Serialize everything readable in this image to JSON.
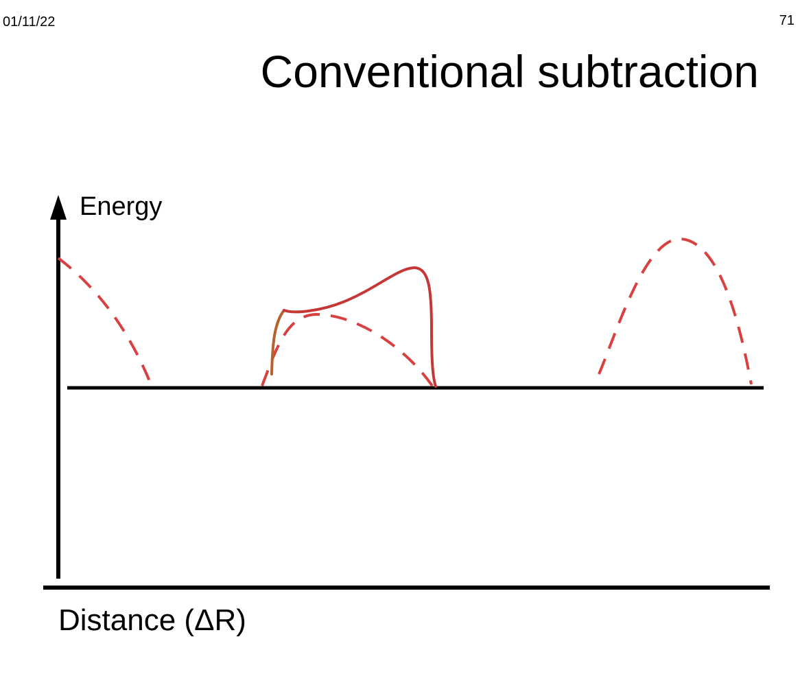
{
  "header": {
    "date": "01/11/22",
    "slide_number": "71"
  },
  "title": "Conventional subtraction",
  "axes": {
    "y_label": "Energy",
    "x_label": "Distance (ΔR)"
  },
  "colors": {
    "axis": "#000000",
    "dashed_curve": "#d94040",
    "solid_curve": "#c63838",
    "rising_edge": "#b5622f"
  }
}
